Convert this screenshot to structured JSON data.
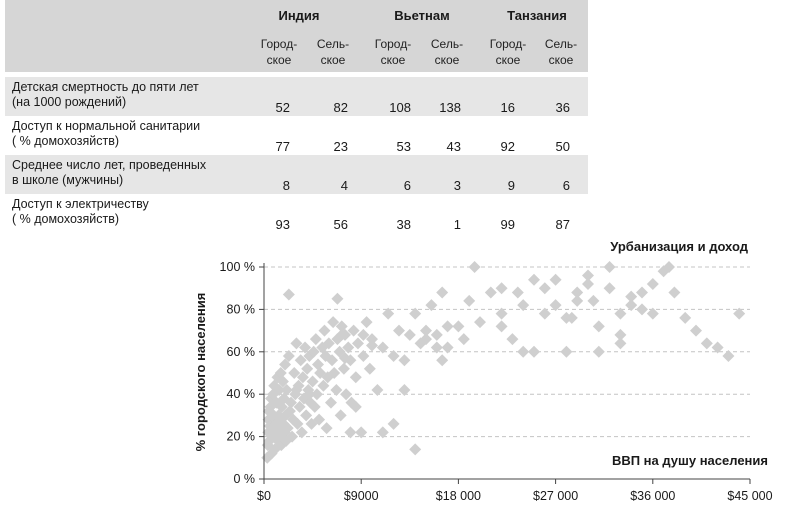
{
  "table": {
    "countries": [
      "Индия",
      "Вьетнам",
      "Танзания"
    ],
    "subheaders": [
      "Город-\nское",
      "Сель-\nское"
    ],
    "rows": [
      {
        "label": "Детская смертность до пяти лет\n(на 1000 рождений)",
        "values": [
          "52",
          "82",
          "108",
          "138",
          "16",
          "36"
        ]
      },
      {
        "label": "Доступ к нормальной санитарии\n( % домохозяйств)",
        "values": [
          "77",
          "23",
          "53",
          "43",
          "92",
          "50"
        ]
      },
      {
        "label": "Среднее число лет, проведенных\nв школе (мужчины)",
        "values": [
          "8",
          "4",
          "6",
          "3",
          "9",
          "6"
        ]
      },
      {
        "label": "Доступ к электричеству\n( % домохозяйств)",
        "values": [
          "93",
          "56",
          "38",
          "1",
          "99",
          "87"
        ]
      }
    ]
  },
  "chart_data": {
    "type": "scatter",
    "title": "Урбанизация и доход",
    "xlabel": "ВВП на душу населения",
    "ylabel": "% городского населения",
    "xlim": [
      0,
      45000
    ],
    "ylim": [
      0,
      100
    ],
    "xticks": [
      0,
      9000,
      18000,
      27000,
      36000,
      45000
    ],
    "xtick_labels": [
      "$0",
      "$9000",
      "$18 000",
      "$27 000",
      "$36 000",
      "$45 000"
    ],
    "yticks": [
      0,
      20,
      40,
      60,
      80,
      100
    ],
    "ytick_labels": [
      "0 %",
      "20 %",
      "40 %",
      "60 %",
      "80 %",
      "100 %"
    ],
    "grid": "horizontal dashed",
    "marker": "diamond",
    "colors": {
      "point": "#cfcfcf",
      "grid": "#c4c4c4",
      "axis": "#444444",
      "header": "#d6d6d6",
      "stripe": "#e6e6e6"
    },
    "points": [
      [
        300,
        10
      ],
      [
        350,
        16
      ],
      [
        400,
        22
      ],
      [
        420,
        28
      ],
      [
        450,
        32
      ],
      [
        500,
        18
      ],
      [
        550,
        25
      ],
      [
        600,
        34
      ],
      [
        650,
        38
      ],
      [
        700,
        12
      ],
      [
        750,
        20
      ],
      [
        800,
        24
      ],
      [
        850,
        40
      ],
      [
        900,
        30
      ],
      [
        950,
        44
      ],
      [
        1000,
        14
      ],
      [
        1050,
        20
      ],
      [
        1100,
        26
      ],
      [
        1150,
        36
      ],
      [
        1200,
        22
      ],
      [
        1250,
        48
      ],
      [
        1300,
        18
      ],
      [
        1350,
        30
      ],
      [
        1400,
        42
      ],
      [
        1450,
        24
      ],
      [
        1500,
        28
      ],
      [
        1550,
        50
      ],
      [
        1600,
        16
      ],
      [
        1650,
        34
      ],
      [
        1700,
        20
      ],
      [
        1750,
        46
      ],
      [
        1800,
        26
      ],
      [
        1850,
        38
      ],
      [
        1900,
        22
      ],
      [
        1950,
        54
      ],
      [
        2000,
        30
      ],
      [
        2050,
        18
      ],
      [
        2100,
        42
      ],
      [
        2200,
        24
      ],
      [
        2300,
        58
      ],
      [
        2400,
        32
      ],
      [
        2500,
        36
      ],
      [
        2600,
        20
      ],
      [
        2700,
        28
      ],
      [
        2800,
        50
      ],
      [
        2900,
        40
      ],
      [
        3000,
        64
      ],
      [
        3100,
        26
      ],
      [
        3200,
        44
      ],
      [
        3300,
        34
      ],
      [
        3400,
        56
      ],
      [
        3500,
        22
      ],
      [
        3600,
        48
      ],
      [
        3700,
        38
      ],
      [
        3800,
        62
      ],
      [
        3900,
        30
      ],
      [
        4000,
        52
      ],
      [
        4100,
        42
      ],
      [
        4200,
        58
      ],
      [
        4300,
        36
      ],
      [
        4400,
        26
      ],
      [
        4500,
        46
      ],
      [
        4600,
        60
      ],
      [
        4700,
        34
      ],
      [
        4800,
        66
      ],
      [
        4900,
        40
      ],
      [
        5000,
        54
      ],
      [
        5100,
        28
      ],
      [
        5200,
        50
      ],
      [
        5400,
        62
      ],
      [
        5500,
        44
      ],
      [
        5600,
        70
      ],
      [
        5700,
        58
      ],
      [
        5800,
        24
      ],
      [
        5900,
        48
      ],
      [
        6000,
        64
      ],
      [
        6200,
        36
      ],
      [
        6300,
        56
      ],
      [
        6400,
        74
      ],
      [
        6500,
        50
      ],
      [
        6700,
        42
      ],
      [
        6800,
        66
      ],
      [
        7000,
        60
      ],
      [
        7100,
        30
      ],
      [
        7200,
        72
      ],
      [
        7400,
        52
      ],
      [
        7500,
        68
      ],
      [
        7600,
        40
      ],
      [
        7800,
        62
      ],
      [
        8000,
        56
      ],
      [
        8100,
        36
      ],
      [
        8300,
        70
      ],
      [
        8500,
        48
      ],
      [
        8700,
        64
      ],
      [
        9000,
        22
      ],
      [
        9200,
        58
      ],
      [
        9500,
        74
      ],
      [
        9800,
        52
      ],
      [
        10000,
        66
      ],
      [
        10500,
        42
      ],
      [
        11000,
        62
      ],
      [
        11500,
        78
      ],
      [
        12000,
        58
      ],
      [
        12500,
        70
      ],
      [
        13000,
        56
      ],
      [
        13500,
        68
      ],
      [
        14000,
        78
      ],
      [
        14500,
        64
      ],
      [
        15000,
        70
      ],
      [
        15500,
        82
      ],
      [
        16000,
        68
      ],
      [
        16500,
        56
      ],
      [
        17000,
        62
      ],
      [
        18000,
        72
      ],
      [
        19000,
        84
      ],
      [
        20000,
        74
      ],
      [
        21000,
        88
      ],
      [
        22000,
        78
      ],
      [
        23000,
        66
      ],
      [
        24000,
        82
      ],
      [
        25000,
        60
      ],
      [
        26000,
        90
      ],
      [
        27000,
        94
      ],
      [
        28000,
        76
      ],
      [
        29000,
        84
      ],
      [
        30000,
        96
      ],
      [
        31000,
        72
      ],
      [
        32000,
        90
      ],
      [
        33000,
        68
      ],
      [
        34000,
        86
      ],
      [
        35000,
        80
      ],
      [
        36000,
        92
      ],
      [
        37000,
        98
      ],
      [
        38000,
        88
      ],
      [
        39000,
        76
      ],
      [
        40000,
        70
      ],
      [
        41000,
        64
      ],
      [
        42000,
        62
      ],
      [
        43000,
        58
      ],
      [
        44000,
        78
      ],
      [
        2300,
        87
      ],
      [
        3000,
        42
      ],
      [
        4200,
        40
      ],
      [
        6800,
        85
      ],
      [
        7200,
        68
      ],
      [
        7500,
        57
      ],
      [
        8000,
        22
      ],
      [
        8500,
        34
      ],
      [
        9200,
        68
      ],
      [
        10000,
        63
      ],
      [
        11000,
        22
      ],
      [
        12000,
        26
      ],
      [
        13000,
        42
      ],
      [
        14000,
        14
      ],
      [
        15000,
        66
      ],
      [
        16000,
        62
      ],
      [
        16500,
        88
      ],
      [
        17000,
        72
      ],
      [
        18500,
        66
      ],
      [
        19500,
        100
      ],
      [
        22000,
        90
      ],
      [
        22000,
        72
      ],
      [
        23500,
        88
      ],
      [
        24000,
        60
      ],
      [
        25000,
        94
      ],
      [
        26000,
        78
      ],
      [
        27000,
        82
      ],
      [
        28000,
        60
      ],
      [
        28500,
        76
      ],
      [
        29000,
        88
      ],
      [
        30000,
        92
      ],
      [
        30500,
        84
      ],
      [
        31000,
        60
      ],
      [
        32000,
        100
      ],
      [
        33000,
        78
      ],
      [
        33000,
        64
      ],
      [
        34000,
        82
      ],
      [
        35000,
        88
      ],
      [
        36000,
        78
      ],
      [
        37500,
        100
      ]
    ]
  }
}
